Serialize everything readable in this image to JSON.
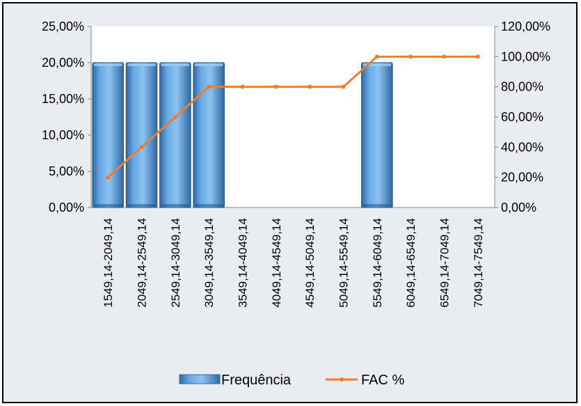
{
  "colors": {
    "bar": "#5b9bd5",
    "bar_dark": "#2f6aa4",
    "line": "#ed7d31",
    "plot_bg": "#ffffff",
    "chart_bg": "#e9ecf0"
  },
  "chart_data": {
    "type": "bar",
    "categories": [
      "1549,14-2049,14",
      "2049,14-2549,14",
      "2549,14-3049,14",
      "3049,14-3549,14",
      "3549,14-4049,14",
      "4049,14-4549,14",
      "4549,14-5049,14",
      "5049,14-5549,14",
      "5549,14-6049,14",
      "6049,14-6549,14",
      "6549,14-7049,14",
      "7049,14-7549,14"
    ],
    "series": [
      {
        "name": "Frequência",
        "type": "bar",
        "axis": "left",
        "values": [
          20,
          20,
          20,
          20,
          0,
          0,
          0,
          0,
          20,
          0,
          0,
          0
        ]
      },
      {
        "name": "FAC %",
        "type": "line",
        "axis": "right",
        "values": [
          20,
          40,
          60,
          80,
          80,
          80,
          80,
          80,
          100,
          100,
          100,
          100
        ]
      }
    ],
    "y_left": {
      "ylim": [
        0,
        25
      ],
      "ticks": [
        0,
        5,
        10,
        15,
        20,
        25
      ],
      "tick_labels": [
        "0,00%",
        "5,00%",
        "10,00%",
        "15,00%",
        "20,00%",
        "25,00%"
      ]
    },
    "y_right": {
      "ylim": [
        0,
        120
      ],
      "ticks": [
        0,
        20,
        40,
        60,
        80,
        100,
        120
      ],
      "tick_labels": [
        "0,00%",
        "20,00%",
        "40,00%",
        "60,00%",
        "80,00%",
        "100,00%",
        "120,00%"
      ]
    },
    "legend_position": "bottom",
    "grid": false
  }
}
